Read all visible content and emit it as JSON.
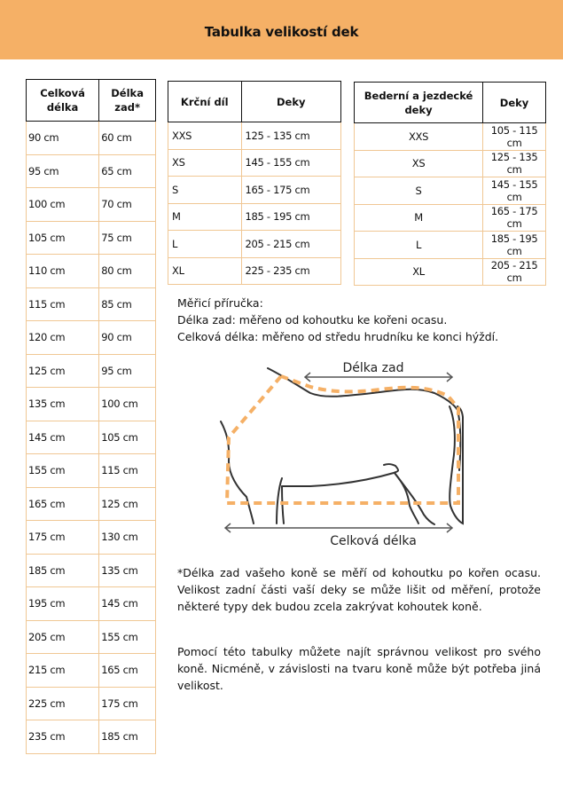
{
  "title": "Tabulka velikostí dek",
  "accent_color": "#F5B066",
  "table_length": {
    "headers": [
      "Celková délka",
      "Délka zad*"
    ],
    "rows": [
      [
        "90 cm",
        "60 cm"
      ],
      [
        "95 cm",
        "65 cm"
      ],
      [
        "100 cm",
        "70 cm"
      ],
      [
        "105 cm",
        "75 cm"
      ],
      [
        "110 cm",
        "80 cm"
      ],
      [
        "115 cm",
        "85 cm"
      ],
      [
        "120 cm",
        "90 cm"
      ],
      [
        "125 cm",
        "95 cm"
      ],
      [
        "135 cm",
        "100 cm"
      ],
      [
        "145 cm",
        "105 cm"
      ],
      [
        "155 cm",
        "115 cm"
      ],
      [
        "165 cm",
        "125 cm"
      ],
      [
        "175 cm",
        "130 cm"
      ],
      [
        "185 cm",
        "135 cm"
      ],
      [
        "195 cm",
        "145 cm"
      ],
      [
        "205 cm",
        "155 cm"
      ],
      [
        "215 cm",
        "165 cm"
      ],
      [
        "225 cm",
        "175 cm"
      ],
      [
        "235 cm",
        "185 cm"
      ]
    ]
  },
  "table_neck": {
    "headers": [
      "Krční díl",
      "Deky"
    ],
    "rows": [
      [
        "XXS",
        "125 - 135 cm"
      ],
      [
        "XS",
        "145 - 155 cm"
      ],
      [
        "S",
        "165 - 175 cm"
      ],
      [
        "M",
        "185 - 195 cm"
      ],
      [
        "L",
        "205 - 215 cm"
      ],
      [
        "XL",
        "225 - 235 cm"
      ]
    ]
  },
  "table_hip": {
    "headers": [
      "Bederní a jezdecké deky",
      "Deky"
    ],
    "rows": [
      [
        "XXS",
        "105 - 115 cm"
      ],
      [
        "XS",
        "125 - 135 cm"
      ],
      [
        "S",
        "145 - 155 cm"
      ],
      [
        "M",
        "165 - 175 cm"
      ],
      [
        "L",
        "185 - 195 cm"
      ],
      [
        "XL",
        "205 - 215 cm"
      ]
    ]
  },
  "guide": {
    "title": "Měřicí příručka:",
    "back": "Délka zad: měřeno od kohoutku ke kořeni ocasu.",
    "total": "Celková délka: měřeno od středu hrudníku ke konci hýždí."
  },
  "diagram": {
    "back_label": "Délka zad",
    "total_label": "Celková délka"
  },
  "footnote": "*Délka zad vašeho koně se měří od kohoutku po kořen ocasu. Velikost zadní části vaší deky se může lišit od měření, protože některé typy dek budou zcela zakrývat kohoutek koně.",
  "note": "Pomocí této tabulky můžete najít správnou velikost pro svého koně. Nicméně, v závislosti na tvaru koně může být potřeba jiná velikost."
}
